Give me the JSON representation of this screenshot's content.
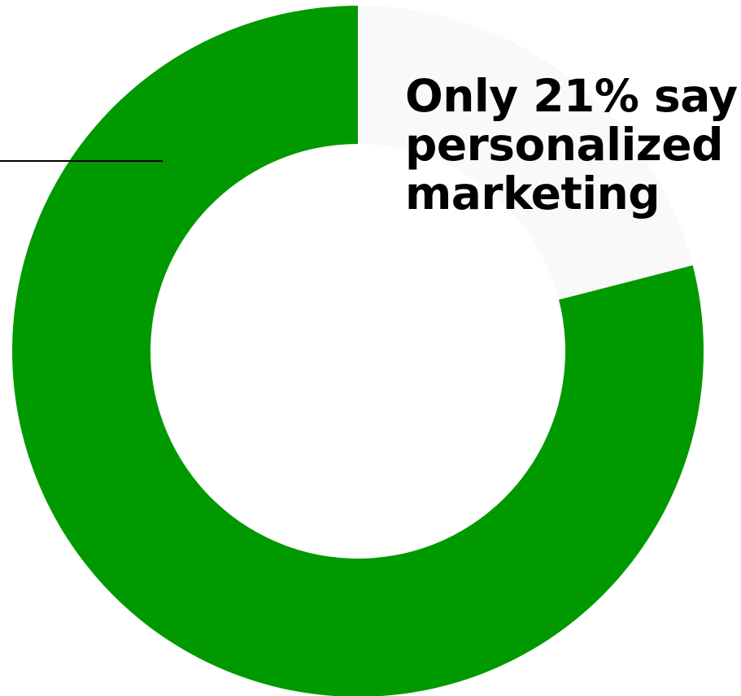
{
  "chart_data": {
    "type": "pie",
    "style": "donut",
    "slices": [
      {
        "label": "",
        "value": 21,
        "color": "#f9f9f9"
      },
      {
        "label": "",
        "value": 79,
        "color": "#009900"
      }
    ],
    "annotation": {
      "lines": [
        "Only 21% say",
        "personalized",
        "marketing"
      ]
    },
    "legend": "none"
  }
}
